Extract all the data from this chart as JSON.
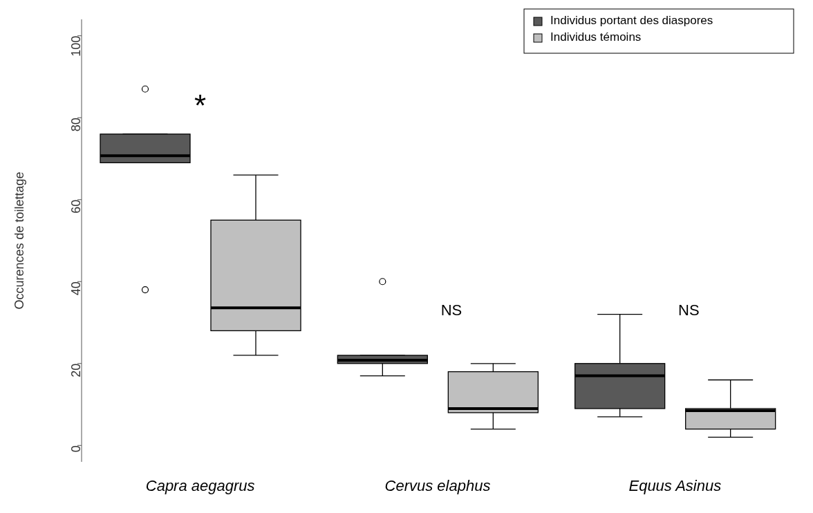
{
  "chart_data": {
    "type": "box",
    "ylabel": "Occurences de toilettage",
    "categories": [
      "Capra aegagrus",
      "Cervus elaphus",
      "Equus Asinus"
    ],
    "series": [
      {
        "name": "Individus portant des diaspores",
        "color": "#595959",
        "boxes": [
          {
            "low": 69,
            "q1": 69,
            "median": 70.7,
            "q3": 76,
            "high": 76,
            "outliers": [
              87,
              38
            ]
          },
          {
            "low": 17,
            "q1": 20,
            "median": 20.8,
            "q3": 22,
            "high": 22,
            "outliers": [
              40
            ]
          },
          {
            "low": 7,
            "q1": 9,
            "median": 17,
            "q3": 20,
            "high": 32
          }
        ]
      },
      {
        "name": "Individus témoins",
        "color": "#bfbfbf",
        "boxes": [
          {
            "low": 22,
            "q1": 28,
            "median": 33.6,
            "q3": 55,
            "high": 66
          },
          {
            "low": 4,
            "q1": 8,
            "median": 9,
            "q3": 18,
            "high": 20
          },
          {
            "low": 2,
            "q1": 4,
            "median": 8.5,
            "q3": 9,
            "high": 16
          }
        ]
      }
    ],
    "ylim": [
      -4,
      104
    ],
    "yticks": [
      0,
      20,
      40,
      60,
      80,
      100
    ],
    "legend": "top right",
    "annotations": [
      "*",
      "NS",
      "NS"
    ]
  }
}
